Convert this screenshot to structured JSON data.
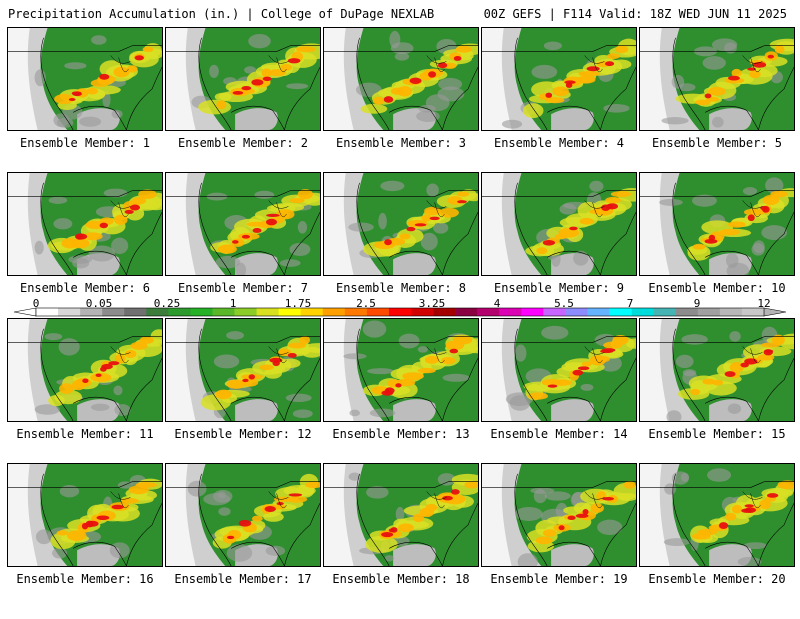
{
  "header": {
    "title_left": "Precipitation Accumulation (in.) | College of DuPage NEXLAB",
    "title_right": "00Z GEFS | F114 Valid: 18Z WED JUN 11 2025"
  },
  "colorbar": {
    "labels": [
      "0",
      "0.05",
      "0.25",
      "1",
      "1.75",
      "2.5",
      "3.25",
      "4",
      "5.5",
      "7",
      "9",
      "12"
    ],
    "colors": [
      "#ffffff",
      "#d8d8d8",
      "#b4b4b4",
      "#8c8c8c",
      "#707070",
      "#3c7d3c",
      "#2d9a2d",
      "#26b026",
      "#5ab828",
      "#8ccc28",
      "#d8e020",
      "#ffff00",
      "#ffd200",
      "#ffa000",
      "#ff7800",
      "#ff4b00",
      "#ff0000",
      "#d20000",
      "#a50000",
      "#8b0040",
      "#b4006e",
      "#dc00b4",
      "#ff00ff",
      "#c864ff",
      "#8c8cff",
      "#64b4ff",
      "#00ffff",
      "#00dcdc",
      "#46b4b4",
      "#8c8c8c",
      "#a0a0a0",
      "#b8b8b8",
      "#c8c8c8"
    ]
  },
  "panels": [
    {
      "label": "Ensemble Member: 1"
    },
    {
      "label": "Ensemble Member: 2"
    },
    {
      "label": "Ensemble Member: 3"
    },
    {
      "label": "Ensemble Member: 4"
    },
    {
      "label": "Ensemble Member: 5"
    },
    {
      "label": "Ensemble Member: 6"
    },
    {
      "label": "Ensemble Member: 7"
    },
    {
      "label": "Ensemble Member: 8"
    },
    {
      "label": "Ensemble Member: 9"
    },
    {
      "label": "Ensemble Member: 10"
    },
    {
      "label": "Ensemble Member: 11"
    },
    {
      "label": "Ensemble Member: 12"
    },
    {
      "label": "Ensemble Member: 13"
    },
    {
      "label": "Ensemble Member: 14"
    },
    {
      "label": "Ensemble Member: 15"
    },
    {
      "label": "Ensemble Member: 16"
    },
    {
      "label": "Ensemble Member: 17"
    },
    {
      "label": "Ensemble Member: 18"
    },
    {
      "label": "Ensemble Member: 19"
    },
    {
      "label": "Ensemble Member: 20"
    }
  ]
}
